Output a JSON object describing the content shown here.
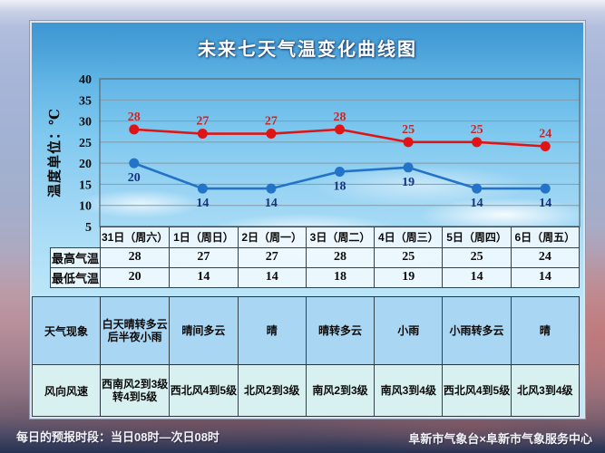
{
  "title": "未来七天气温变化曲线图",
  "chart_data": {
    "type": "line",
    "title": "未来七天气温变化曲线图",
    "categories": [
      "31日（周六）",
      "1日（周日）",
      "2日（周一）",
      "3日（周二）",
      "4日（周三）",
      "5日（周四）",
      "6日（周五）"
    ],
    "series": [
      {
        "name": "最高气温",
        "values": [
          28,
          27,
          27,
          28,
          25,
          25,
          24
        ],
        "color": "#e01414",
        "label_color": "#c92626"
      },
      {
        "name": "最低气温",
        "values": [
          20,
          14,
          14,
          18,
          19,
          14,
          14
        ],
        "color": "#2374c8",
        "label_color": "#16357f"
      }
    ],
    "ylabel": "温度单位：℃",
    "xlabel": "",
    "ylim": [
      5,
      40
    ],
    "ytick_step": 5,
    "grid": true,
    "legend_position": "none"
  },
  "forecast_table": {
    "rows": [
      {
        "label": "天气现象",
        "cells": [
          "白天晴转多云\n后半夜小雨",
          "晴间多云",
          "晴",
          "晴转多云",
          "小雨",
          "小雨转多云",
          "晴"
        ]
      },
      {
        "label": "风向风速",
        "cells": [
          "西南风2到3级\n转4到5级",
          "西北风4到5级",
          "北风2到3级",
          "南风2到3级",
          "南风3到4级",
          "西北风4到5级",
          "北风3到4级"
        ]
      }
    ]
  },
  "footer": {
    "left": "每日的预报时段：当日08时—次日08时",
    "right": "阜新市气象台×阜新市气象服务中心"
  }
}
